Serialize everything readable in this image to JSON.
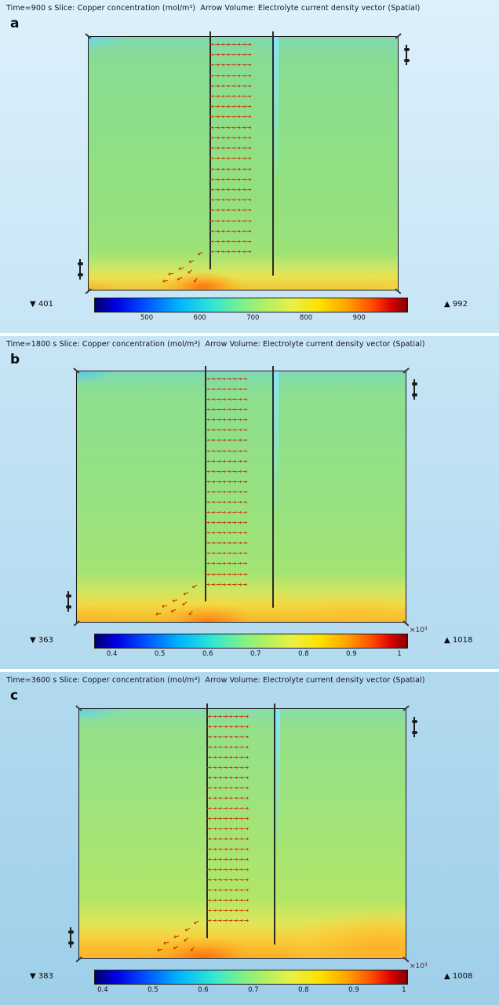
{
  "panels": [
    {
      "label": "a",
      "title": "Time=900 s Slice: Copper concentration (mol/m³)  Arrow Volume: Electrolyte current density vector (Spatial)",
      "colorbar": {
        "min_marker": "▼",
        "min_value": "401",
        "max_marker": "▲",
        "max_value": "992",
        "range": [
          401,
          992
        ],
        "multiplier": "",
        "ticks": [
          {
            "v": 500,
            "label": "500"
          },
          {
            "v": 600,
            "label": "600"
          },
          {
            "v": 700,
            "label": "700"
          },
          {
            "v": 800,
            "label": "800"
          },
          {
            "v": 900,
            "label": "900"
          }
        ]
      }
    },
    {
      "label": "b",
      "title": "Time=1800 s Slice: Copper concentration (mol/m³)  Arrow Volume: Electrolyte current density vector (Spatial)",
      "colorbar": {
        "min_marker": "▼",
        "min_value": "363",
        "max_marker": "▲",
        "max_value": "1018",
        "range": [
          363,
          1018
        ],
        "multiplier": "×10³",
        "ticks": [
          {
            "v": 400,
            "label": "0.4"
          },
          {
            "v": 500,
            "label": "0.5"
          },
          {
            "v": 600,
            "label": "0.6"
          },
          {
            "v": 700,
            "label": "0.7"
          },
          {
            "v": 800,
            "label": "0.8"
          },
          {
            "v": 900,
            "label": "0.9"
          },
          {
            "v": 1000,
            "label": "1"
          }
        ]
      }
    },
    {
      "label": "c",
      "title": "Time=3600 s Slice: Copper concentration (mol/m³)  Arrow Volume: Electrolyte current density vector (Spatial)",
      "colorbar": {
        "min_marker": "▼",
        "min_value": "383",
        "max_marker": "▲",
        "max_value": "1008",
        "range": [
          383,
          1008
        ],
        "multiplier": "×10³",
        "ticks": [
          {
            "v": 400,
            "label": "0.4"
          },
          {
            "v": 500,
            "label": "0.5"
          },
          {
            "v": 600,
            "label": "0.6"
          },
          {
            "v": 700,
            "label": "0.7"
          },
          {
            "v": 800,
            "label": "0.8"
          },
          {
            "v": 900,
            "label": "0.9"
          },
          {
            "v": 1000,
            "label": "1"
          }
        ]
      }
    }
  ],
  "chart_data": [
    {
      "type": "heatmap",
      "panel": "a",
      "time_s": 900,
      "title": "Time=900 s Slice: Copper concentration (mol/m³)  Arrow Volume: Electrolyte current density vector (Spatial)",
      "field_quantity": "Copper concentration (mol/m³)",
      "arrow_quantity": "Electrolyte current density vector (Spatial)",
      "colorbar_min": 401,
      "colorbar_max": 992,
      "colorbar_ticks": [
        500,
        600,
        700,
        800,
        900
      ],
      "colorbar_scale": 1,
      "legend_position": "bottom",
      "colormap": "rainbow"
    },
    {
      "type": "heatmap",
      "panel": "b",
      "time_s": 1800,
      "title": "Time=1800 s Slice: Copper concentration (mol/m³)  Arrow Volume: Electrolyte current density vector (Spatial)",
      "field_quantity": "Copper concentration (mol/m³)",
      "arrow_quantity": "Electrolyte current density vector (Spatial)",
      "colorbar_min": 363,
      "colorbar_max": 1018,
      "colorbar_ticks": [
        400,
        500,
        600,
        700,
        800,
        900,
        1000
      ],
      "colorbar_tick_labels": [
        "0.4",
        "0.5",
        "0.6",
        "0.7",
        "0.8",
        "0.9",
        "1"
      ],
      "colorbar_scale": 1000,
      "colorbar_scale_label": "×10³",
      "legend_position": "bottom",
      "colormap": "rainbow"
    },
    {
      "type": "heatmap",
      "panel": "c",
      "time_s": 3600,
      "title": "Time=3600 s Slice: Copper concentration (mol/m³)  Arrow Volume: Electrolyte current density vector (Spatial)",
      "field_quantity": "Copper concentration (mol/m³)",
      "arrow_quantity": "Electrolyte current density vector (Spatial)",
      "colorbar_min": 383,
      "colorbar_max": 1008,
      "colorbar_ticks": [
        400,
        500,
        600,
        700,
        800,
        900,
        1000
      ],
      "colorbar_tick_labels": [
        "0.4",
        "0.5",
        "0.6",
        "0.7",
        "0.8",
        "0.9",
        "1"
      ],
      "colorbar_scale": 1000,
      "colorbar_scale_label": "×10³",
      "legend_position": "bottom",
      "colormap": "rainbow"
    }
  ]
}
